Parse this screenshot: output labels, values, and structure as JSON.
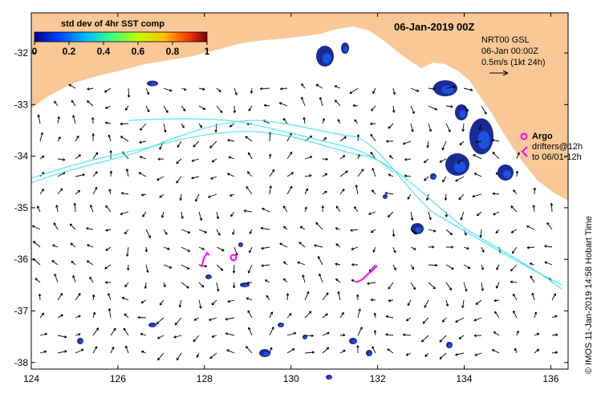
{
  "title": "06-Jan-2019 00Z",
  "legend": {
    "title": "std dev of 4hr SST comp",
    "ticks": [
      "0",
      "0.2",
      "0.4",
      "0.6",
      "0.8",
      "1"
    ],
    "colormap": [
      "#00008f",
      "#0040ff",
      "#00bfff",
      "#40ff80",
      "#bfff00",
      "#ffbf00",
      "#ff4000",
      "#800000"
    ]
  },
  "info": {
    "product": "NRT00 GSL",
    "time": "06-Jan 00:00Z",
    "scale": "0.5m/s (1kt 24h)"
  },
  "argo_label": "Argo",
  "drifters_label": "drifters@12h",
  "drifters_range": "to 06/01-12h",
  "credit": "© IMOS 11-Jan-2019 14:58 Hobart Time",
  "axes": {
    "x_ticks": [
      "124",
      "126",
      "128",
      "130",
      "132",
      "134",
      "136"
    ],
    "y_ticks": [
      "-32",
      "-33",
      "-34",
      "-35",
      "-36",
      "-37",
      "-38"
    ]
  },
  "colors": {
    "land": "#f9c896",
    "contour": "#40e0f0",
    "argo": "#ff00ff",
    "sst_dark": "#00148c"
  }
}
